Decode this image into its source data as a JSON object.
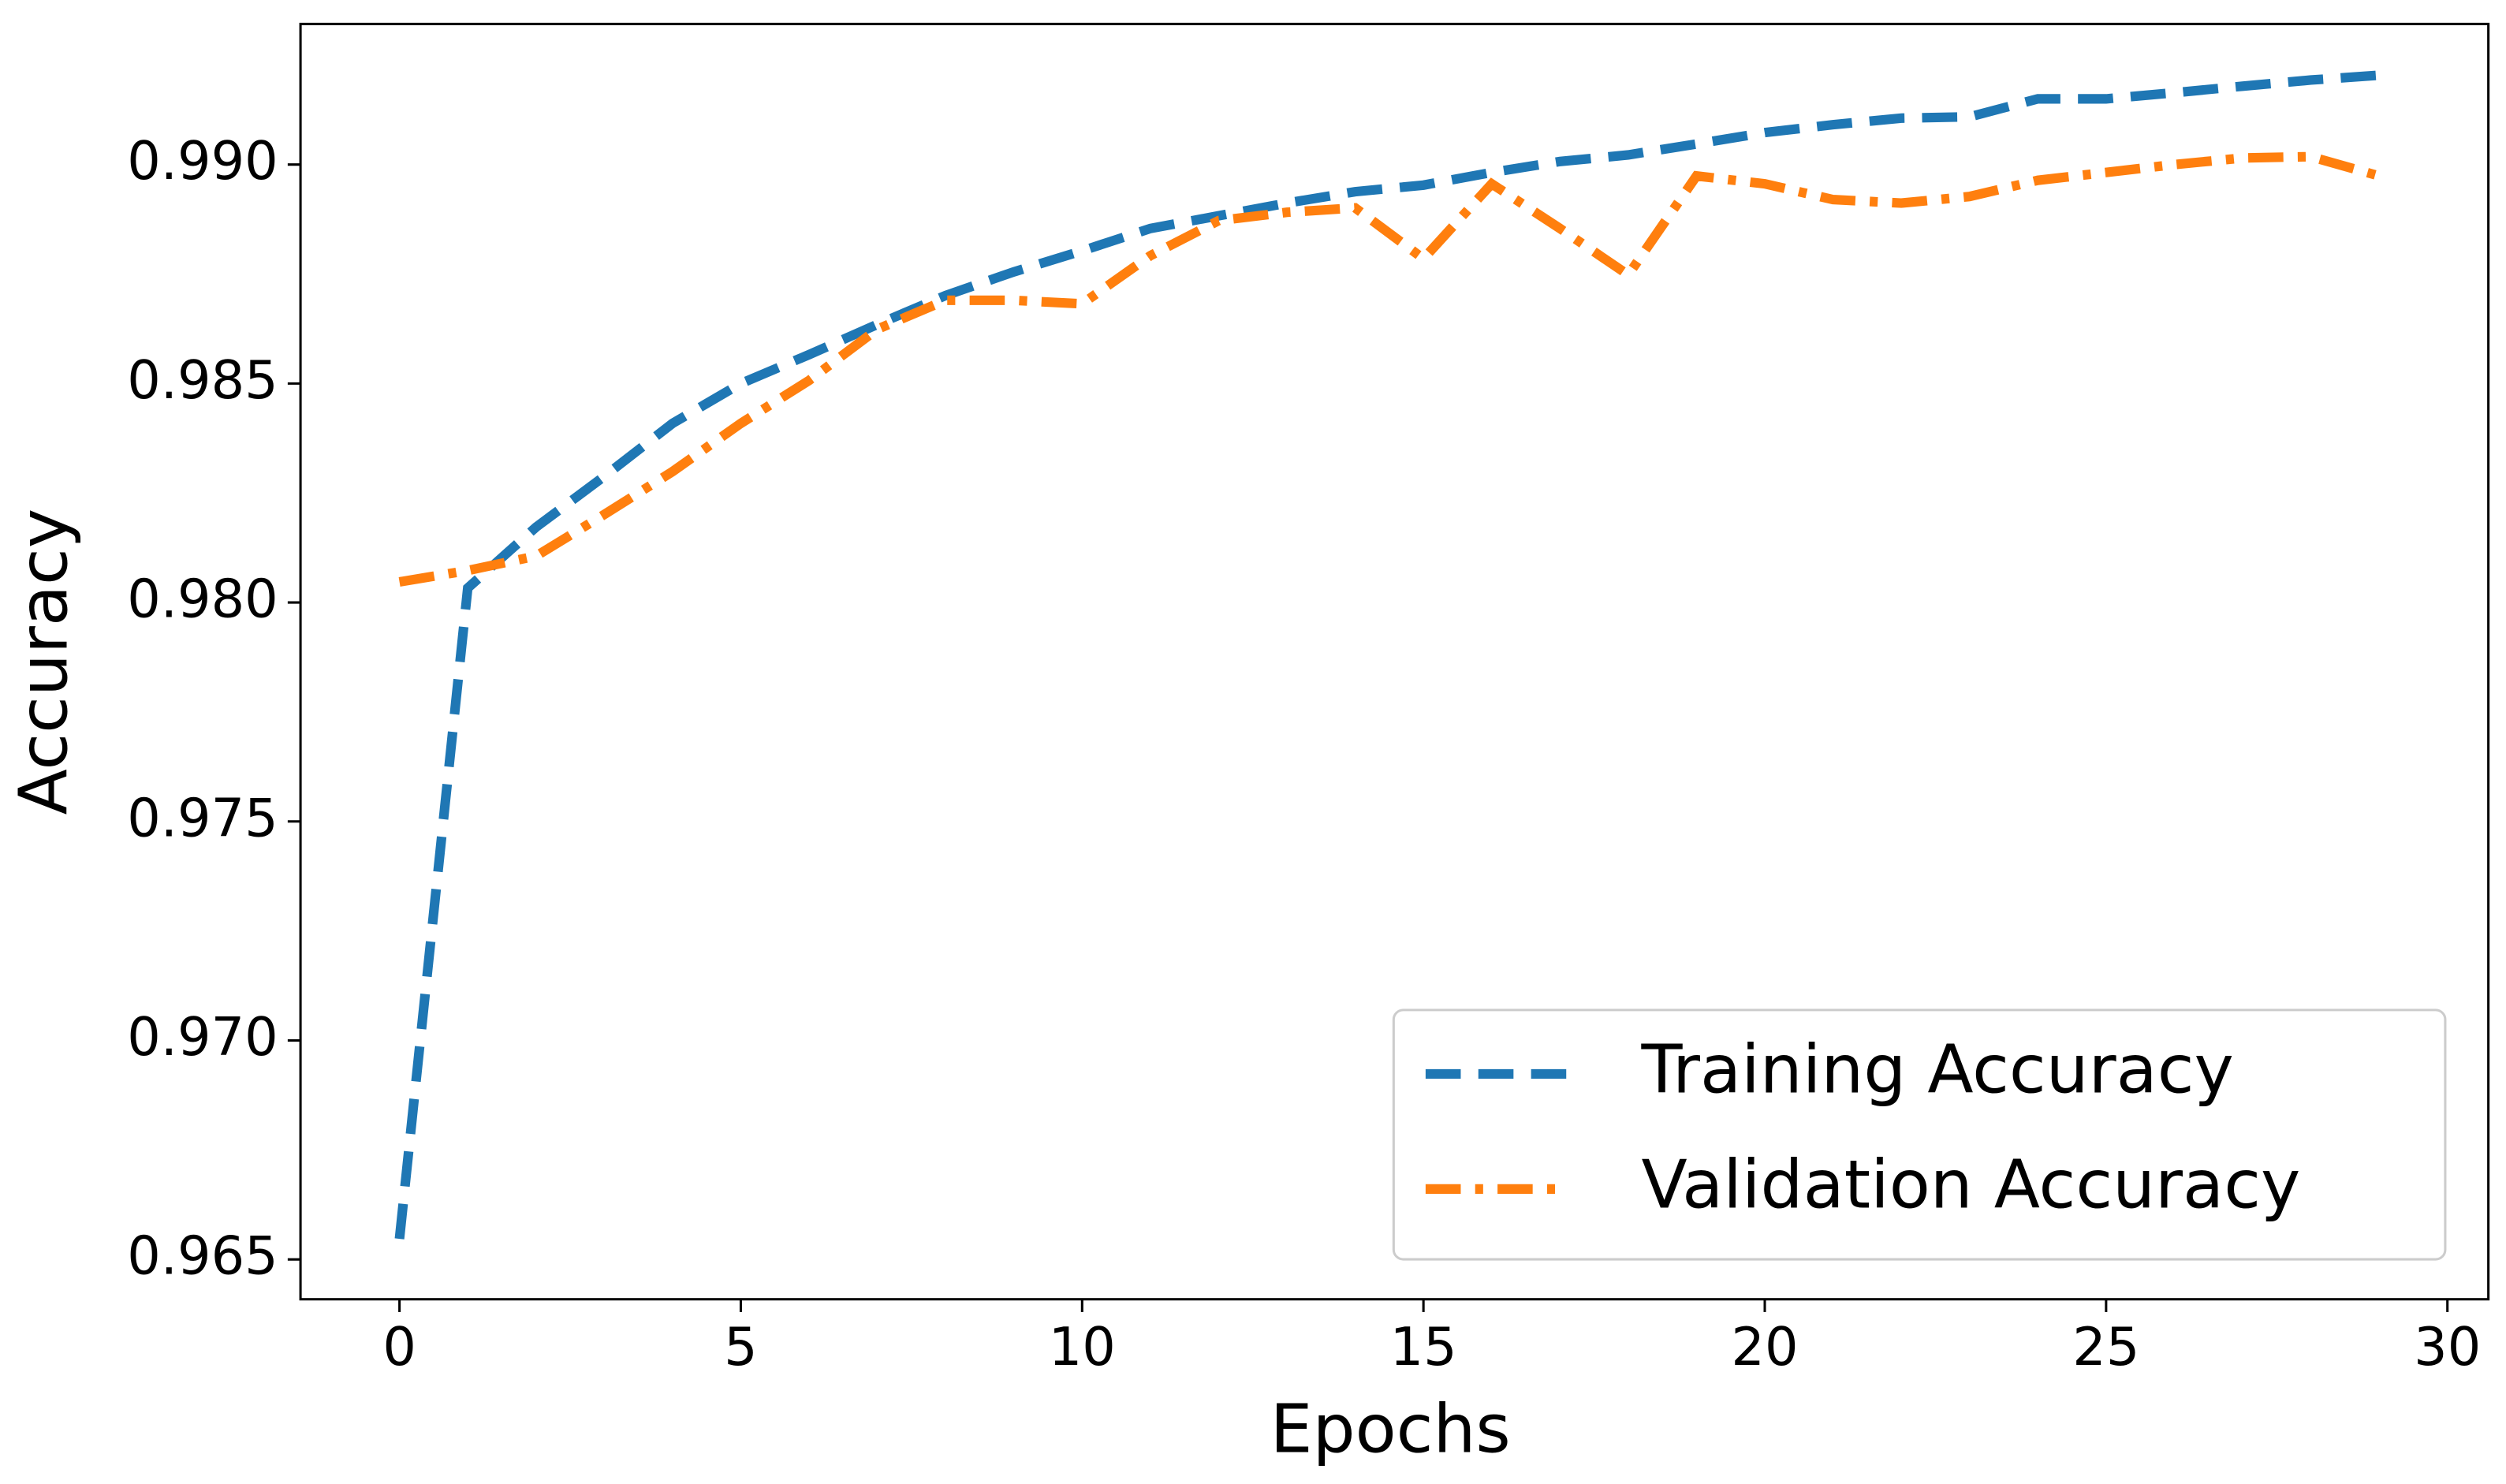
{
  "chart_data": {
    "type": "line",
    "x_label": "Epochs",
    "y_label": "Accuracy",
    "x": [
      0,
      1,
      2,
      3,
      4,
      5,
      6,
      7,
      8,
      9,
      10,
      11,
      12,
      13,
      14,
      15,
      16,
      17,
      18,
      19,
      20,
      21,
      22,
      23,
      24,
      25,
      26,
      27,
      28,
      29
    ],
    "series": [
      {
        "name": "Training Accuracy",
        "color": "#1f77b4",
        "dash": "dashed",
        "values": [
          0.96547,
          0.98033,
          0.98172,
          0.98288,
          0.98409,
          0.985,
          0.98566,
          0.98635,
          0.98701,
          0.98755,
          0.98803,
          0.98854,
          0.98883,
          0.98912,
          0.98938,
          0.98953,
          0.98982,
          0.99007,
          0.99022,
          0.99047,
          0.99073,
          0.99091,
          0.99106,
          0.99109,
          0.9915,
          0.9915,
          0.99164,
          0.99179,
          0.99193,
          0.99204
        ]
      },
      {
        "name": "Validation Accuracy",
        "color": "#ff7f0e",
        "dash": "dashdot",
        "values": [
          0.98047,
          0.98073,
          0.98106,
          0.98201,
          0.98299,
          0.98409,
          0.98507,
          0.98624,
          0.9869,
          0.9869,
          0.98682,
          0.98792,
          0.98872,
          0.98891,
          0.98901,
          0.98785,
          0.98956,
          0.98854,
          0.98748,
          0.98974,
          0.98956,
          0.9892,
          0.98912,
          0.98927,
          0.98964,
          0.98982,
          0.99,
          0.99015,
          0.99018,
          0.98974
        ]
      }
    ],
    "xlim": [
      -1.45,
      30.6
    ],
    "xticks": [
      0,
      5,
      10,
      15,
      20,
      25,
      30
    ],
    "ylim": [
      0.96409,
      0.99321
    ],
    "yticks": [
      {
        "value": 0.965,
        "label": "0.965"
      },
      {
        "value": 0.97,
        "label": "0.970"
      },
      {
        "value": 0.975,
        "label": "0.975"
      },
      {
        "value": 0.98,
        "label": "0.980"
      },
      {
        "value": 0.985,
        "label": "0.985"
      },
      {
        "value": 0.99,
        "label": "0.990"
      }
    ],
    "legend": "lower right",
    "grid": false
  }
}
